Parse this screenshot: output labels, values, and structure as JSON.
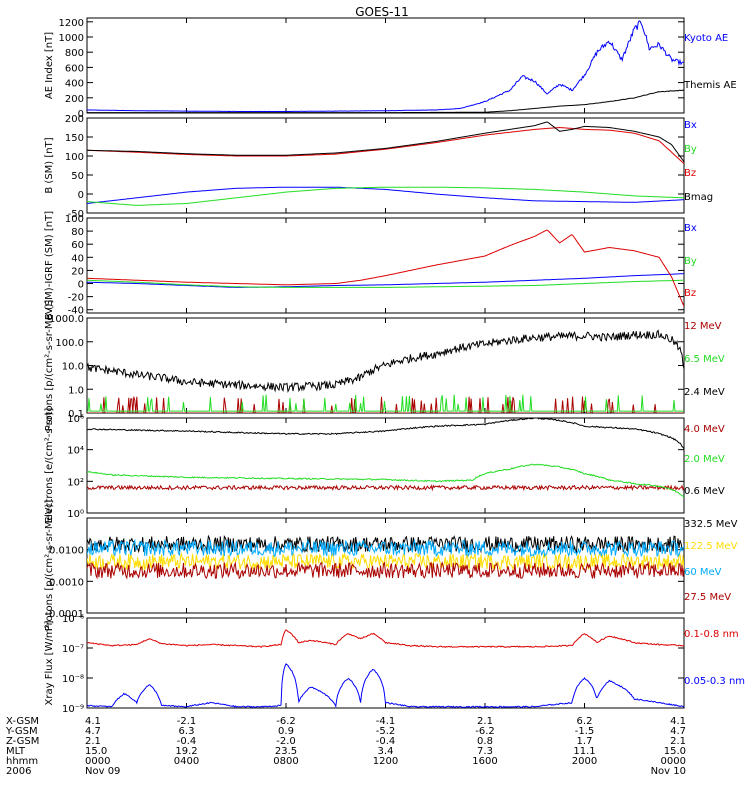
{
  "title": "GOES-11",
  "colors": {
    "black": "#000000",
    "blue": "#0000ff",
    "green": "#22dd22",
    "red": "#dd0000",
    "dark_red": "#aa0000",
    "yellow": "#ffdd00",
    "cyan": "#00aaff"
  },
  "chart_data": [
    {
      "type": "line",
      "ylabel": "AE Index [nT]",
      "ylim": [
        0,
        1250
      ],
      "yticks": [
        0,
        200,
        400,
        600,
        800,
        1000,
        1200
      ],
      "yticklabels": [
        "0",
        "200",
        "400",
        "600",
        "800",
        "1000",
        "1200"
      ],
      "x_hours": [
        0,
        4,
        8,
        12,
        16,
        20,
        24
      ],
      "series": [
        {
          "name": "Kyoto AE",
          "color": "#0000ff",
          "x": [
            0,
            2,
            4,
            6,
            8,
            10,
            12,
            14,
            15,
            16,
            17,
            17.5,
            18,
            18.5,
            19,
            19.5,
            20,
            20.5,
            21,
            21.5,
            22,
            22.3,
            22.6,
            23,
            23.5,
            24
          ],
          "y": [
            40,
            30,
            25,
            20,
            20,
            25,
            30,
            40,
            60,
            150,
            300,
            480,
            420,
            250,
            380,
            300,
            500,
            800,
            950,
            700,
            1100,
            1200,
            850,
            900,
            700,
            650
          ]
        },
        {
          "name": "Themis AE",
          "color": "#000000",
          "x": [
            0,
            4,
            8,
            12,
            16,
            17,
            18,
            19,
            20,
            21,
            22,
            23,
            24
          ],
          "y": [
            5,
            5,
            5,
            5,
            10,
            30,
            60,
            90,
            110,
            150,
            200,
            280,
            300
          ]
        }
      ]
    },
    {
      "type": "line",
      "ylabel": "B (SM) [nT]",
      "ylim": [
        -50,
        200
      ],
      "yticks": [
        -50,
        0,
        50,
        100,
        150,
        200
      ],
      "yticklabels": [
        "-50",
        "0",
        "50",
        "100",
        "150",
        "200"
      ],
      "x_hours": [
        0,
        4,
        8,
        12,
        16,
        20,
        24
      ],
      "series": [
        {
          "name": "Bx",
          "color": "#0000ff",
          "x": [
            0,
            2,
            4,
            6,
            8,
            10,
            12,
            14,
            16,
            18,
            20,
            22,
            24
          ],
          "y": [
            -25,
            -10,
            5,
            15,
            18,
            18,
            12,
            0,
            -10,
            -18,
            -20,
            -22,
            -15
          ]
        },
        {
          "name": "By",
          "color": "#22dd22",
          "x": [
            0,
            2,
            4,
            6,
            8,
            10,
            12,
            14,
            16,
            18,
            20,
            22,
            24
          ],
          "y": [
            -20,
            -30,
            -25,
            -10,
            5,
            15,
            18,
            18,
            16,
            12,
            5,
            -5,
            -10
          ]
        },
        {
          "name": "Bz",
          "color": "#dd0000",
          "x": [
            0,
            2,
            4,
            6,
            8,
            10,
            12,
            14,
            16,
            18,
            19,
            20,
            21,
            22,
            23,
            24
          ],
          "y": [
            115,
            110,
            104,
            100,
            100,
            105,
            118,
            135,
            155,
            170,
            175,
            170,
            168,
            160,
            140,
            80
          ]
        },
        {
          "name": "Bmag",
          "color": "#000000",
          "x": [
            0,
            2,
            4,
            6,
            8,
            10,
            12,
            14,
            16,
            17,
            18,
            18.5,
            19,
            19.5,
            20,
            21,
            22,
            23,
            23.5,
            24
          ],
          "y": [
            115,
            112,
            106,
            102,
            102,
            108,
            120,
            138,
            160,
            170,
            180,
            190,
            165,
            170,
            178,
            175,
            165,
            150,
            130,
            85
          ]
        }
      ]
    },
    {
      "type": "line",
      "ylabel": "B (SM)-IGRF (SM) [nT]",
      "ylim": [
        -45,
        100
      ],
      "yticks": [
        -40,
        -20,
        0,
        20,
        40,
        60,
        80,
        100
      ],
      "yticklabels": [
        "-40",
        "-20",
        "0",
        "20",
        "40",
        "60",
        "80",
        "100"
      ],
      "x_hours": [
        0,
        4,
        8,
        12,
        16,
        20,
        24
      ],
      "series": [
        {
          "name": "Bx",
          "color": "#0000ff",
          "x": [
            0,
            2,
            4,
            6,
            8,
            10,
            12,
            14,
            16,
            18,
            20,
            22,
            24
          ],
          "y": [
            2,
            0,
            -3,
            -6,
            -5,
            -3,
            -2,
            0,
            2,
            5,
            8,
            12,
            15
          ]
        },
        {
          "name": "By",
          "color": "#22dd22",
          "x": [
            0,
            2,
            4,
            6,
            8,
            10,
            12,
            14,
            16,
            18,
            20,
            22,
            24
          ],
          "y": [
            5,
            2,
            -2,
            -5,
            -6,
            -6,
            -6,
            -5,
            -4,
            -3,
            0,
            3,
            5
          ]
        },
        {
          "name": "Bz",
          "color": "#dd0000",
          "x": [
            0,
            2,
            4,
            6,
            8,
            10,
            11,
            12,
            13,
            14,
            15,
            16,
            17,
            18,
            18.5,
            19,
            19.5,
            20,
            21,
            22,
            23,
            23.5,
            24
          ],
          "y": [
            8,
            5,
            2,
            0,
            -2,
            0,
            5,
            12,
            20,
            28,
            35,
            42,
            58,
            72,
            82,
            62,
            75,
            48,
            55,
            50,
            40,
            10,
            -35
          ]
        }
      ]
    },
    {
      "type": "line",
      "ylabel": "Protons [p/(cm²-s-sr-MeV)]",
      "yscale": "log",
      "ylim": [
        0.1,
        1000.0
      ],
      "yticks": [
        0.1,
        1.0,
        10.0,
        100.0,
        1000.0
      ],
      "yticklabels": [
        "0.1",
        "1.0",
        "10.0",
        "100.0",
        "1000.0"
      ],
      "x_hours": [
        0,
        4,
        8,
        12,
        16,
        20,
        24
      ],
      "series": [
        {
          "name": "12 MeV",
          "color": "#aa0000",
          "x": [
            0,
            24
          ],
          "y": [
            0.1,
            0.1
          ]
        },
        {
          "name": "6.5 MeV",
          "color": "#22dd22",
          "x": [
            0,
            24
          ],
          "y": [
            0.12,
            0.12
          ]
        },
        {
          "name": "2.4 MeV",
          "color": "#000000",
          "x": [
            0,
            2,
            4,
            6,
            8,
            10,
            11,
            12,
            14,
            16,
            18,
            20,
            21,
            22,
            23,
            23.5,
            24
          ],
          "y": [
            8,
            4,
            2,
            1.5,
            1.2,
            1.5,
            3,
            10,
            30,
            80,
            150,
            180,
            150,
            200,
            200,
            120,
            5
          ]
        }
      ]
    },
    {
      "type": "line",
      "ylabel": "Electrons [e/(cm²-s-sr)]",
      "yscale": "log",
      "ylim": [
        1,
        1000000
      ],
      "yticks": [
        1,
        100,
        10000,
        1000000
      ],
      "yticklabels": [
        "10⁰",
        "10²",
        "10⁴",
        "10⁶"
      ],
      "x_hours": [
        0,
        4,
        8,
        12,
        16,
        20,
        24
      ],
      "series": [
        {
          "name": "4.0 MeV",
          "color": "#aa0000",
          "x": [
            0,
            4,
            8,
            12,
            16,
            20,
            24
          ],
          "y": [
            40,
            40,
            40,
            40,
            40,
            40,
            40
          ]
        },
        {
          "name": "2.0 MeV",
          "color": "#22dd22",
          "x": [
            0,
            1,
            4,
            8,
            12,
            14,
            15.5,
            16,
            17,
            18,
            19,
            20,
            21,
            22,
            23,
            23.5,
            24
          ],
          "y": [
            400,
            250,
            180,
            150,
            130,
            100,
            120,
            300,
            600,
            1200,
            800,
            300,
            120,
            70,
            50,
            30,
            10
          ]
        },
        {
          "name": "0.6 MeV",
          "color": "#000000",
          "x": [
            0,
            2,
            4,
            6,
            8,
            10,
            12,
            14,
            16,
            17,
            18,
            19,
            20,
            21,
            22,
            23,
            24
          ],
          "y": [
            200000,
            170000,
            150000,
            120000,
            100000,
            100000,
            150000,
            300000,
            400000,
            700000,
            1000000,
            700000,
            300000,
            250000,
            200000,
            100000,
            10000
          ]
        }
      ]
    },
    {
      "type": "line",
      "ylabel": "Protons [p/(cm²-s-sr-MeV)]",
      "yscale": "log",
      "ylim": [
        0.0001,
        0.1
      ],
      "yticks": [
        0.0001,
        0.001,
        0.01
      ],
      "yticklabels": [
        "0.0001",
        "0.0010",
        "0.0100"
      ],
      "x_hours": [
        0,
        4,
        8,
        12,
        16,
        20,
        24
      ],
      "series": [
        {
          "name": "332.5 MeV",
          "color": "#000000",
          "x": [
            0,
            24
          ],
          "y": [
            0.015,
            0.015
          ]
        },
        {
          "name": "122.5 MeV",
          "color": "#ffdd00",
          "x": [
            0,
            24
          ],
          "y": [
            0.0042,
            0.0042
          ]
        },
        {
          "name": "60 MeV",
          "color": "#00aaff",
          "x": [
            0,
            24
          ],
          "y": [
            0.011,
            0.011
          ]
        },
        {
          "name": "27.5 MeV",
          "color": "#aa0000",
          "x": [
            0,
            24
          ],
          "y": [
            0.0022,
            0.0022
          ]
        }
      ]
    },
    {
      "type": "line",
      "ylabel": "Xray Flux [W/m²]",
      "yscale": "log",
      "ylim": [
        1e-09,
        1e-06
      ],
      "yticks": [
        1e-09,
        1e-08,
        1e-07,
        1e-06
      ],
      "yticklabels": [
        "10⁻⁹",
        "10⁻⁸",
        "10⁻⁷",
        "10⁻⁶"
      ],
      "x_hours": [
        0,
        4,
        8,
        12,
        16,
        20,
        24
      ],
      "series": [
        {
          "name": "0.1-0.8 nm",
          "color": "#dd0000",
          "x": [
            0,
            1,
            2,
            2.5,
            3,
            4,
            5,
            6,
            7,
            7.8,
            8,
            8.5,
            9,
            10,
            10.5,
            11,
            11.5,
            12,
            13,
            14,
            16,
            18,
            19.5,
            20,
            20.5,
            21,
            22,
            23,
            24
          ],
          "y": [
            1.5e-07,
            1.2e-07,
            1.3e-07,
            2e-07,
            1.4e-07,
            1.2e-07,
            1.3e-07,
            1.2e-07,
            1.1e-07,
            1.3e-07,
            4e-07,
            1.5e-07,
            1.8e-07,
            1.3e-07,
            3e-07,
            2e-07,
            3e-07,
            1.5e-07,
            1.2e-07,
            1.1e-07,
            1.1e-07,
            1.1e-07,
            1.2e-07,
            3e-07,
            1.5e-07,
            2.5e-07,
            1.5e-07,
            1.3e-07,
            1.2e-07
          ]
        },
        {
          "name": "0.05-0.3 nm",
          "color": "#0000ff",
          "x": [
            0,
            1,
            1.5,
            2,
            2.5,
            3,
            4,
            5,
            6,
            7,
            7.8,
            8,
            8.5,
            9,
            10,
            10.5,
            11,
            11.5,
            12,
            13,
            14,
            16,
            18,
            19.5,
            20,
            20.5,
            21,
            22,
            23,
            24
          ],
          "y": [
            1.2e-09,
            1.1e-09,
            3e-09,
            1.5e-09,
            6e-09,
            1.2e-09,
            1.1e-09,
            1.5e-09,
            1.1e-09,
            1.1e-09,
            1.2e-09,
            3e-08,
            1.5e-09,
            5e-09,
            1.2e-09,
            1e-08,
            1.5e-09,
            2e-08,
            1.5e-09,
            1.1e-09,
            1.1e-09,
            1.1e-09,
            1.1e-09,
            1.5e-09,
            1e-08,
            2e-09,
            8e-09,
            2e-09,
            1.5e-09,
            1.1e-09
          ]
        }
      ]
    }
  ],
  "ephemeris": {
    "labels": [
      "X-GSM",
      "Y-GSM",
      "Z-GSM",
      "MLT",
      "hhmm",
      "2006"
    ],
    "columns": [
      [
        "4.1",
        "4.7",
        "2.1",
        "15.0",
        "0000",
        "Nov 09"
      ],
      [
        "-2.1",
        "6.3",
        "-0.4",
        "19.2",
        "0400",
        ""
      ],
      [
        "-6.2",
        "0.9",
        "-2.0",
        "23.5",
        "0800",
        ""
      ],
      [
        "-4.1",
        "-5.2",
        "-0.4",
        "3.4",
        "1200",
        ""
      ],
      [
        "2.1",
        "-6.2",
        "0.8",
        "7.3",
        "1600",
        ""
      ],
      [
        "6.2",
        "-1.5",
        "1.7",
        "11.1",
        "2000",
        ""
      ],
      [
        "4.1",
        "4.7",
        "2.1",
        "15.0",
        "0000",
        "Nov 10"
      ]
    ]
  }
}
